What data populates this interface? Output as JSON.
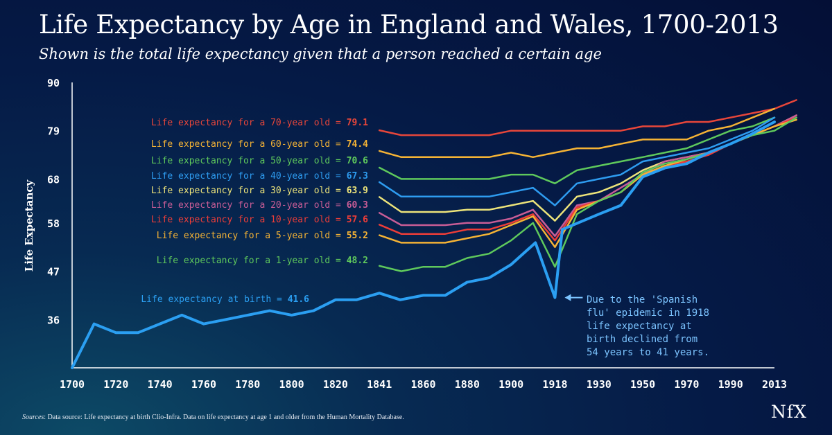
{
  "header": {
    "title": "Life Expectancy by Age in England and Wales, 1700-2013",
    "subtitle": "Shown is the total life expectancy given that a person reached a certain age"
  },
  "footer": {
    "source_label": "Sources",
    "source_text": ": Data source: Life expectancy at birth Clio-Infra. Data on life expectancy at age 1 and older from the Human Mortality Database.",
    "logo": "NfX"
  },
  "chart_data": {
    "type": "line",
    "title": "Life Expectancy by Age in England and Wales, 1700-2013",
    "xlabel": "",
    "ylabel": "Life Expectancy",
    "ylim": [
      25,
      90
    ],
    "yticks": [
      36,
      47,
      58,
      68,
      79,
      90
    ],
    "xticks": [
      "1700",
      "1720",
      "1740",
      "1760",
      "1780",
      "1800",
      "1820",
      "1841",
      "1860",
      "1880",
      "1900",
      "1918",
      "1930",
      "1950",
      "1970",
      "1990",
      "2013"
    ],
    "grid": false,
    "series": [
      {
        "name": "Life expectancy for a 70-year old",
        "label_value": "79.1",
        "color": "#e8463a",
        "points": [
          [
            0,
            79.1
          ],
          [
            1,
            78
          ],
          [
            2,
            78
          ],
          [
            3,
            78
          ],
          [
            4,
            78
          ],
          [
            5,
            78
          ],
          [
            6,
            79
          ],
          [
            7,
            79
          ],
          [
            8,
            79
          ],
          [
            9,
            79
          ],
          [
            10,
            79
          ],
          [
            11,
            79
          ],
          [
            12,
            80
          ],
          [
            13,
            80
          ],
          [
            14,
            81
          ],
          [
            15,
            81
          ],
          [
            16,
            82
          ],
          [
            17,
            83
          ],
          [
            18,
            84
          ],
          [
            19,
            86
          ]
        ]
      },
      {
        "name": "Life expectancy for a 60-year old",
        "label_value": "74.4",
        "color": "#f5b335",
        "points": [
          [
            0,
            74.4
          ],
          [
            1,
            73
          ],
          [
            2,
            73
          ],
          [
            3,
            73
          ],
          [
            4,
            73
          ],
          [
            5,
            73
          ],
          [
            6,
            74
          ],
          [
            7,
            73
          ],
          [
            8,
            74
          ],
          [
            9,
            75
          ],
          [
            10,
            75
          ],
          [
            11,
            76
          ],
          [
            12,
            77
          ],
          [
            13,
            77
          ],
          [
            14,
            77
          ],
          [
            15,
            79
          ],
          [
            16,
            80
          ],
          [
            17,
            82
          ],
          [
            18,
            84
          ]
        ]
      },
      {
        "name": "Life expectancy for a 50-year old",
        "label_value": "70.6",
        "color": "#5fc95c",
        "points": [
          [
            0,
            70.6
          ],
          [
            1,
            68
          ],
          [
            2,
            68
          ],
          [
            3,
            68
          ],
          [
            4,
            68
          ],
          [
            5,
            68
          ],
          [
            6,
            69
          ],
          [
            7,
            69
          ],
          [
            8,
            67
          ],
          [
            9,
            70
          ],
          [
            10,
            71
          ],
          [
            11,
            72
          ],
          [
            12,
            73
          ],
          [
            13,
            74
          ],
          [
            14,
            75
          ],
          [
            15,
            77
          ],
          [
            16,
            79
          ],
          [
            17,
            80
          ],
          [
            18,
            82
          ]
        ]
      },
      {
        "name": "Life expectancy for a 40-year old",
        "label_value": "67.3",
        "color": "#2e9cf0",
        "points": [
          [
            0,
            67.3
          ],
          [
            1,
            64
          ],
          [
            2,
            64
          ],
          [
            3,
            64
          ],
          [
            4,
            64
          ],
          [
            5,
            64
          ],
          [
            6,
            65
          ],
          [
            7,
            66
          ],
          [
            8,
            62
          ],
          [
            9,
            67
          ],
          [
            10,
            68
          ],
          [
            11,
            69
          ],
          [
            12,
            72
          ],
          [
            13,
            73
          ],
          [
            14,
            74
          ],
          [
            15,
            75
          ],
          [
            16,
            77
          ],
          [
            17,
            79
          ],
          [
            18,
            82
          ]
        ]
      },
      {
        "name": "Life expectancy for a 30-year old",
        "label_value": "63.9",
        "color": "#ede47a",
        "points": [
          [
            0,
            63.9
          ],
          [
            1,
            60.5
          ],
          [
            2,
            60.5
          ],
          [
            3,
            60.5
          ],
          [
            4,
            61
          ],
          [
            5,
            61
          ],
          [
            6,
            62
          ],
          [
            7,
            63
          ],
          [
            8,
            58.5
          ],
          [
            9,
            64
          ],
          [
            10,
            65
          ],
          [
            11,
            67
          ],
          [
            12,
            70
          ],
          [
            13,
            72
          ],
          [
            14,
            73
          ],
          [
            15,
            74
          ],
          [
            16,
            76
          ],
          [
            17,
            78
          ],
          [
            18,
            80
          ],
          [
            19,
            82.5
          ]
        ]
      },
      {
        "name": "Life expectancy for a 20-year old",
        "label_value": "60.3",
        "color": "#c95d96",
        "points": [
          [
            0,
            60.3
          ],
          [
            1,
            57.5
          ],
          [
            2,
            57.5
          ],
          [
            3,
            57.5
          ],
          [
            4,
            58
          ],
          [
            5,
            58
          ],
          [
            6,
            59
          ],
          [
            7,
            61
          ],
          [
            8,
            55
          ],
          [
            9,
            62
          ],
          [
            10,
            63
          ],
          [
            11,
            66
          ],
          [
            12,
            69
          ],
          [
            13,
            72
          ],
          [
            14,
            73
          ],
          [
            15,
            74
          ],
          [
            16,
            76
          ],
          [
            17,
            78
          ],
          [
            18,
            80
          ],
          [
            19,
            82.5
          ]
        ]
      },
      {
        "name": "Life expectancy for a 10-year old",
        "label_value": "57.6",
        "color": "#ee3d38",
        "points": [
          [
            0,
            57.6
          ],
          [
            1,
            55.5
          ],
          [
            2,
            55.5
          ],
          [
            3,
            55.5
          ],
          [
            4,
            56.5
          ],
          [
            5,
            56.5
          ],
          [
            6,
            58
          ],
          [
            7,
            60
          ],
          [
            8,
            54
          ],
          [
            9,
            61.5
          ],
          [
            10,
            63
          ],
          [
            11,
            65
          ],
          [
            12,
            69
          ],
          [
            13,
            71
          ],
          [
            14,
            72
          ],
          [
            15,
            73.5
          ],
          [
            16,
            76
          ],
          [
            17,
            78
          ],
          [
            18,
            80
          ],
          [
            19,
            82
          ]
        ]
      },
      {
        "name": "Life expectancy for a 5-year old",
        "label_value": "55.2",
        "color": "#f5b335",
        "points": [
          [
            0,
            55.2
          ],
          [
            1,
            53.5
          ],
          [
            2,
            53.5
          ],
          [
            3,
            53.5
          ],
          [
            4,
            54.5
          ],
          [
            5,
            55.5
          ],
          [
            6,
            57.5
          ],
          [
            7,
            59.5
          ],
          [
            8,
            52.5
          ],
          [
            9,
            61
          ],
          [
            10,
            63
          ],
          [
            11,
            65
          ],
          [
            12,
            69
          ],
          [
            13,
            71
          ],
          [
            14,
            72.5
          ],
          [
            15,
            74
          ],
          [
            16,
            76
          ],
          [
            17,
            78
          ],
          [
            18,
            80
          ],
          [
            19,
            81.5
          ]
        ]
      },
      {
        "name": "Life expectancy for a 1-year old",
        "label_value": "48.2",
        "color": "#5fc95c",
        "points": [
          [
            0,
            48.2
          ],
          [
            1,
            47
          ],
          [
            2,
            48
          ],
          [
            3,
            48
          ],
          [
            4,
            50
          ],
          [
            5,
            51
          ],
          [
            6,
            54
          ],
          [
            7,
            58
          ],
          [
            8,
            48
          ],
          [
            9,
            60
          ],
          [
            10,
            63
          ],
          [
            11,
            65
          ],
          [
            12,
            69.5
          ],
          [
            13,
            71.5
          ],
          [
            14,
            72.5
          ],
          [
            15,
            74
          ],
          [
            16,
            76
          ],
          [
            17,
            78
          ],
          [
            18,
            79
          ],
          [
            19,
            82
          ]
        ]
      },
      {
        "name": "Life expectancy at birth",
        "label_value": "41.6",
        "color": "#2b9ff2",
        "points": [
          [
            1700,
            25
          ],
          [
            1710,
            35
          ],
          [
            1720,
            33
          ],
          [
            1730,
            33
          ],
          [
            1740,
            35
          ],
          [
            1750,
            37
          ],
          [
            1760,
            35
          ],
          [
            1770,
            36
          ],
          [
            1780,
            37
          ],
          [
            1790,
            38
          ],
          [
            1800,
            37
          ],
          [
            1810,
            38
          ],
          [
            1820,
            40.5
          ],
          [
            1830,
            40.5
          ],
          [
            1841,
            42
          ],
          [
            1850,
            40.5
          ],
          [
            1860,
            41.5
          ],
          [
            1870,
            41.5
          ],
          [
            1880,
            44.5
          ],
          [
            1890,
            45.5
          ],
          [
            1900,
            48.5
          ],
          [
            1910,
            53.5
          ],
          [
            1918,
            41
          ],
          [
            1920,
            56.5
          ],
          [
            1930,
            60
          ],
          [
            1940,
            62
          ],
          [
            1950,
            68.5
          ],
          [
            1960,
            70.5
          ],
          [
            1970,
            71.5
          ],
          [
            1980,
            74
          ],
          [
            1990,
            76
          ],
          [
            2000,
            78
          ],
          [
            2013,
            81
          ]
        ]
      }
    ],
    "annotation": {
      "lines": [
        "Due to the 'Spanish",
        "flu' epidemic in 1918",
        "life expectancy at",
        "birth declined from",
        "54 years to 41 years."
      ],
      "color": "#7cc4ff",
      "point": [
        1918,
        41
      ]
    }
  }
}
